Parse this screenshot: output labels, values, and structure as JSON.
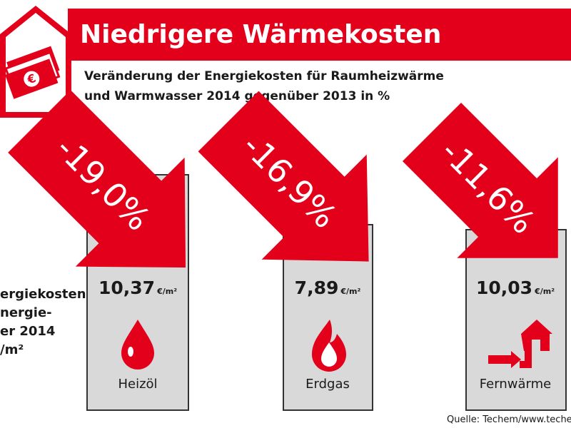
{
  "header": {
    "title": "Niedrigere Wärmekosten",
    "subtitle_lines": [
      "Veränderung der Energiekosten für Raumheizwärme",
      "und Warmwasser 2014 gegenüber 2013 in %"
    ]
  },
  "side_note_lines": [
    "ergiekosten",
    "nergie-",
    "er 2014",
    "/m²"
  ],
  "items": [
    {
      "change": "-19,0%",
      "cost": "10,37",
      "unit": "€/m²",
      "label": "Heizöl"
    },
    {
      "change": "-16,9%",
      "cost": "7,89",
      "unit": "€/m²",
      "label": "Erdgas"
    },
    {
      "change": "-11,6%",
      "cost": "10,03",
      "unit": "€/m²",
      "label": "Fernwärme"
    }
  ],
  "source": "Quelle: Techem/www.teche"
}
